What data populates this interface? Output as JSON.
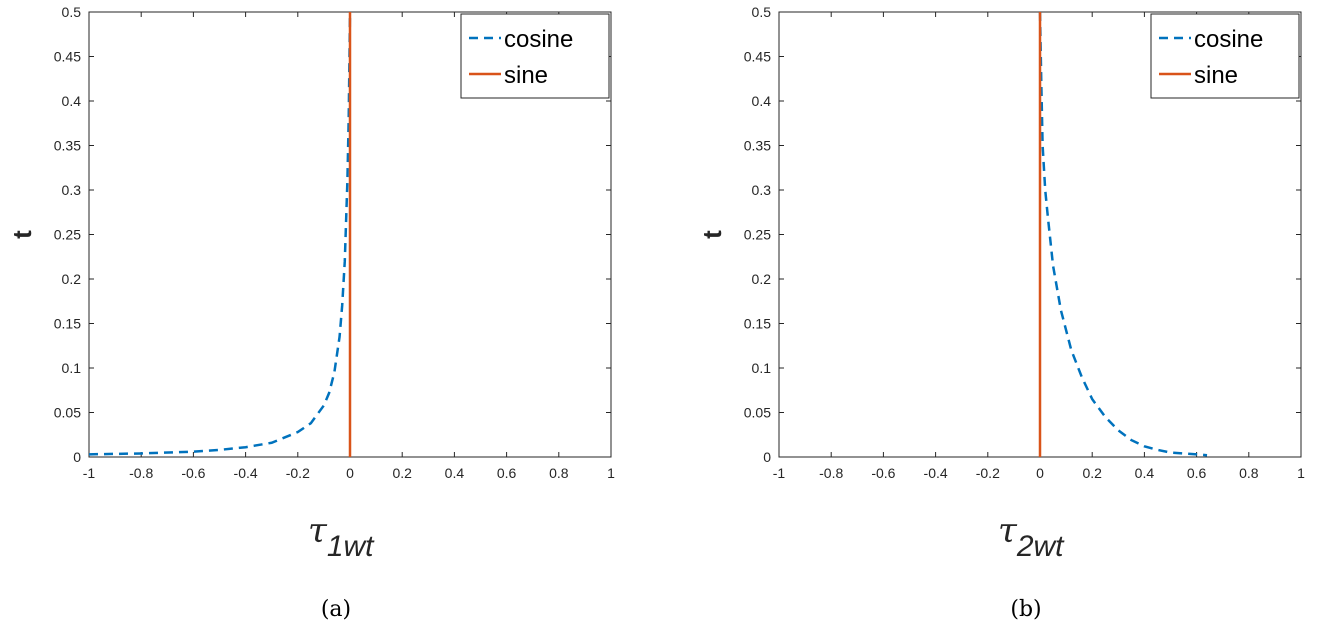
{
  "chart_data": [
    {
      "type": "line",
      "caption": "(a)",
      "xlabel_symbol": "τ",
      "xlabel_sub": "1wt",
      "ylabel": "t",
      "xlim": [
        -1,
        1
      ],
      "ylim": [
        0,
        0.5
      ],
      "xticks": [
        -1,
        -0.8,
        -0.6,
        -0.4,
        -0.2,
        0,
        0.2,
        0.4,
        0.6,
        0.8,
        1
      ],
      "xtick_labels": [
        "-1",
        "-0.8",
        "-0.6",
        "-0.4",
        "-0.2",
        "0",
        "0.2",
        "0.4",
        "0.6",
        "0.8",
        "1"
      ],
      "yticks": [
        0,
        0.05,
        0.1,
        0.15,
        0.2,
        0.25,
        0.3,
        0.35,
        0.4,
        0.45,
        0.5
      ],
      "ytick_labels": [
        "0",
        "0.05",
        "0.1",
        "0.15",
        "0.2",
        "0.25",
        "0.3",
        "0.35",
        "0.4",
        "0.45",
        "0.5"
      ],
      "legend": "top-right",
      "grid": false,
      "series": [
        {
          "name": "cosine",
          "style": "dashed",
          "color": "#0072bd",
          "x": [
            -1.0,
            -0.8,
            -0.6,
            -0.5,
            -0.4,
            -0.3,
            -0.2,
            -0.15,
            -0.1,
            -0.08,
            -0.06,
            -0.04,
            -0.03,
            -0.02,
            -0.01,
            -0.005,
            -0.002,
            0.0
          ],
          "y": [
            0.003,
            0.004,
            0.006,
            0.008,
            0.011,
            0.016,
            0.028,
            0.038,
            0.058,
            0.072,
            0.095,
            0.135,
            0.17,
            0.22,
            0.31,
            0.38,
            0.45,
            0.5
          ]
        },
        {
          "name": "sine",
          "style": "solid",
          "color": "#d95319",
          "x": [
            0.0,
            0.0
          ],
          "y": [
            0.0,
            0.5
          ]
        }
      ]
    },
    {
      "type": "line",
      "caption": "(b)",
      "xlabel_symbol": "τ",
      "xlabel_sub": "2wt",
      "ylabel": "t",
      "xlim": [
        -1,
        1
      ],
      "ylim": [
        0,
        0.5
      ],
      "xticks": [
        -1,
        -0.8,
        -0.6,
        -0.4,
        -0.2,
        0,
        0.2,
        0.4,
        0.6,
        0.8,
        1
      ],
      "xtick_labels": [
        "-1",
        "-0.8",
        "-0.6",
        "-0.4",
        "-0.2",
        "0",
        "0.2",
        "0.4",
        "0.6",
        "0.8",
        "1"
      ],
      "yticks": [
        0,
        0.05,
        0.1,
        0.15,
        0.2,
        0.25,
        0.3,
        0.35,
        0.4,
        0.45,
        0.5
      ],
      "ytick_labels": [
        "0",
        "0.05",
        "0.1",
        "0.15",
        "0.2",
        "0.25",
        "0.3",
        "0.35",
        "0.4",
        "0.45",
        "0.5"
      ],
      "legend": "top-right",
      "grid": false,
      "series": [
        {
          "name": "cosine",
          "style": "dashed",
          "color": "#0072bd",
          "x": [
            0.0,
            0.005,
            0.01,
            0.02,
            0.03,
            0.05,
            0.08,
            0.12,
            0.16,
            0.2,
            0.25,
            0.3,
            0.35,
            0.4,
            0.45,
            0.5,
            0.55,
            0.6,
            0.64
          ],
          "y": [
            0.5,
            0.42,
            0.35,
            0.3,
            0.27,
            0.215,
            0.165,
            0.12,
            0.09,
            0.065,
            0.045,
            0.03,
            0.019,
            0.012,
            0.008,
            0.005,
            0.004,
            0.003,
            0.002
          ]
        },
        {
          "name": "sine",
          "style": "solid",
          "color": "#d95319",
          "x": [
            0.0,
            0.0
          ],
          "y": [
            0.0,
            0.5
          ]
        }
      ]
    }
  ]
}
